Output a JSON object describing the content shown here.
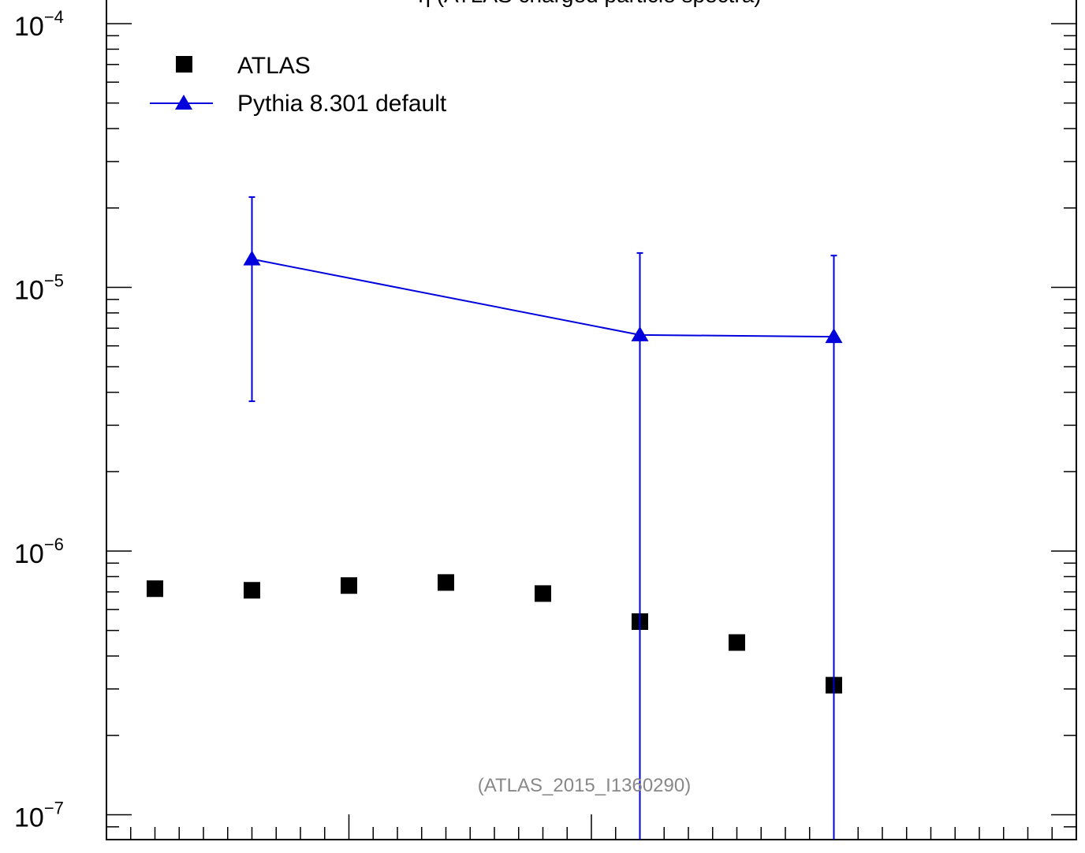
{
  "chart_data": {
    "type": "scatter",
    "title": "η (ATLAS charged particle spectra)",
    "title_visible": "(ATLAS charged particle spectra)",
    "xlabel": "",
    "ylabel": "",
    "y_scale": "log",
    "ylim": [
      8e-08,
      0.00012
    ],
    "xlim": [
      -2.5,
      2.5
    ],
    "y_ticks": [
      {
        "exp": "−4",
        "value": 0.0001
      },
      {
        "exp": "−5",
        "value": 1e-05
      },
      {
        "exp": "−6",
        "value": 1e-06
      },
      {
        "exp": "−7",
        "value": 1e-07
      }
    ],
    "annotation": "(ATLAS_2015_I1360290)",
    "legend_position": "top-left",
    "grid": false,
    "series": [
      {
        "name": "ATLAS",
        "marker": "square",
        "color": "#000000",
        "x": [
          -2.25,
          -1.75,
          -1.25,
          -0.75,
          -0.25,
          0.25,
          0.75,
          1.25
        ],
        "y": [
          7.2e-07,
          7.1e-07,
          7.4e-07,
          7.6e-07,
          6.9e-07,
          5.4e-07,
          4.5e-07,
          3.1e-07
        ]
      },
      {
        "name": "Pythia 8.301 default",
        "marker": "triangle",
        "color": "#0000dd",
        "x": [
          -1.75,
          0.25,
          1.25
        ],
        "y": [
          1.28e-05,
          6.6e-06,
          6.5e-06
        ],
        "err_low": [
          3.7e-06,
          5e-08,
          5e-08
        ],
        "err_high": [
          2.2e-05,
          1.35e-05,
          1.32e-05
        ]
      }
    ]
  }
}
